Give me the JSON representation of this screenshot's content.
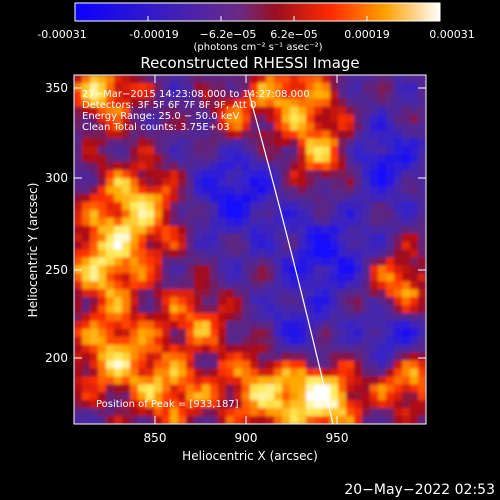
{
  "colorbar": {
    "tick_labels": [
      "-0.00031",
      "-0.00019",
      "−6.2e−05",
      "6.2e−05",
      "0.00019",
      "0.00031"
    ],
    "unit_label": "(photons cm⁻² s⁻¹ asec⁻²)",
    "colors": [
      "#0a00ff",
      "#2d1bc8",
      "#5a2ba0",
      "#7c1f55",
      "#b30000",
      "#ff3a00",
      "#ff9a00",
      "#ffe04a",
      "#ffffff"
    ]
  },
  "plot": {
    "title": "Reconstructed RHESSI Image",
    "xlabel": "Heliocentric X (arcsec)",
    "ylabel": "Heliocentric Y (arcsec)",
    "xlim": [
      805,
      995
    ],
    "ylim": [
      165,
      357
    ],
    "x_ticks": [
      "850",
      "900",
      "950"
    ],
    "y_ticks": [
      "200",
      "250",
      "300",
      "350"
    ],
    "annotations": [
      "27−Mar−2015 14:23:08.000 to 14:27:08.000",
      "Detectors: 3F 5F 6F 7F 8F 9F, Att 0",
      "Energy Range: 25.0 − 50.0 keV",
      "Clean     Total counts: 3.75E+03"
    ],
    "peak_text": "Position of Peak = [933,187]",
    "limb_color": "#ffffff"
  },
  "footer": {
    "timestamp": "20−May−2022 02:53"
  }
}
